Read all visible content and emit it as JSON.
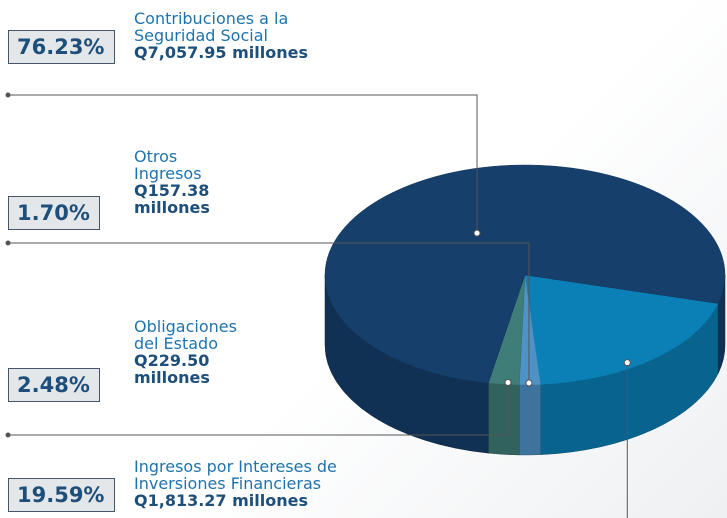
{
  "chart_data": {
    "type": "pie",
    "categories": [
      "Contribuciones a la Seguridad Social",
      "Otros Ingresos",
      "Obligaciones del Estado",
      "Ingresos por Intereses de Inversiones Financieras"
    ],
    "values": [
      76.23,
      1.7,
      2.48,
      19.59
    ],
    "value_labels": [
      "76.23%",
      "1.70%",
      "2.48%",
      "19.59%"
    ],
    "amount_labels": [
      "Q7,057.95 millones",
      "Q157.38 millones",
      "Q229.50 millones",
      "Q1,813.27 millones"
    ],
    "colors": [
      "#163f6c",
      "#4e93c8",
      "#3f7d78",
      "#0a80b6"
    ]
  }
}
